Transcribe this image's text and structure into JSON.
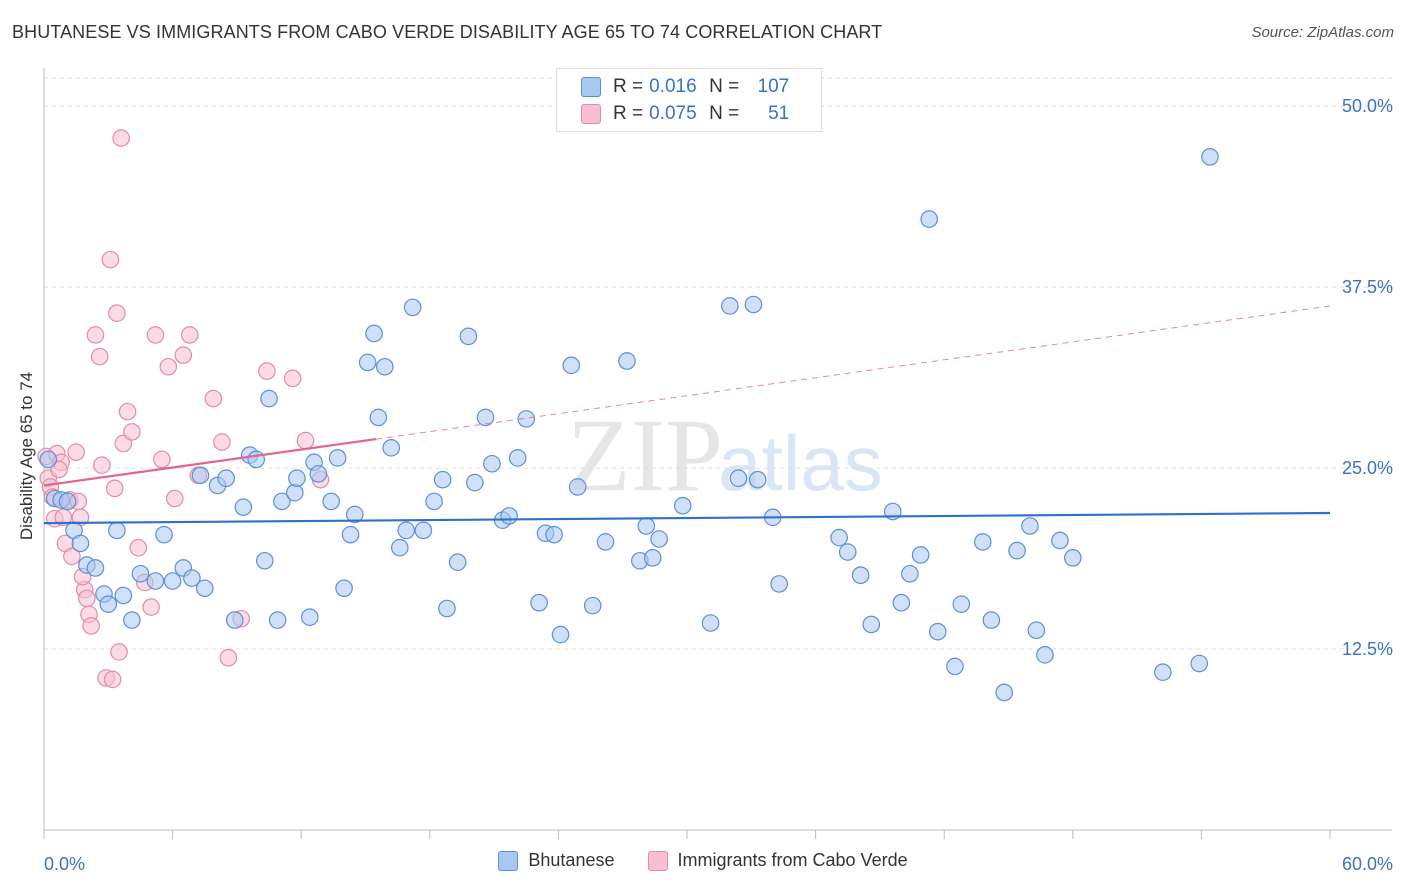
{
  "title": "BHUTANESE VS IMMIGRANTS FROM CABO VERDE DISABILITY AGE 65 TO 74 CORRELATION CHART",
  "source": "Source: ZipAtlas.com",
  "watermark": {
    "zip": "ZIP",
    "atlas": "atlas"
  },
  "stats": {
    "r_label": "R =",
    "n_label": "N =",
    "rows": [
      {
        "r": "0.016",
        "n": "107"
      },
      {
        "r": "0.075",
        "n": "51"
      }
    ]
  },
  "colors": {
    "blue_fill": "#a9c8f0",
    "blue_stroke": "#5b8fd8",
    "blue_line": "#2f6fce",
    "pink_fill": "#f7bfd0",
    "pink_stroke": "#e58aa8",
    "pink_line": "#e0668e",
    "axis_text": "#3a72c4"
  },
  "chart_data": {
    "type": "scatter",
    "title": "BHUTANESE VS IMMIGRANTS FROM CABO VERDE DISABILITY AGE 65 TO 74 CORRELATION CHART",
    "xlabel": "",
    "ylabel": "Disability Age 65 to 74",
    "xlim": [
      0,
      60
    ],
    "ylim": [
      0,
      52.5
    ],
    "x_tick_labels": [
      {
        "v": 0,
        "label": "0.0%"
      },
      {
        "v": 60,
        "label": "60.0%"
      }
    ],
    "y_ticks": [
      {
        "v": 12.5,
        "label": "12.5%"
      },
      {
        "v": 25.0,
        "label": "25.0%"
      },
      {
        "v": 37.5,
        "label": "37.5%"
      },
      {
        "v": 50.0,
        "label": "50.0%"
      }
    ],
    "x_minor_ticks": [
      0,
      6,
      12,
      18,
      24,
      30,
      36,
      42,
      48,
      54,
      60
    ],
    "grid": true,
    "legend": [
      "Bhutanese",
      "Immigrants from Cabo Verde"
    ],
    "series": [
      {
        "name": "Bhutanese",
        "color": "blue",
        "trend": {
          "x0": 0,
          "y0": 21.2,
          "x1": 60,
          "y1": 21.9,
          "dashed_from": null
        },
        "points": [
          [
            0.2,
            25.6
          ],
          [
            0.5,
            22.9
          ],
          [
            0.8,
            22.8
          ],
          [
            1.1,
            22.7
          ],
          [
            1.4,
            20.7
          ],
          [
            1.7,
            19.8
          ],
          [
            2.0,
            18.3
          ],
          [
            2.4,
            18.1
          ],
          [
            2.8,
            16.3
          ],
          [
            3.0,
            15.6
          ],
          [
            3.4,
            20.7
          ],
          [
            3.7,
            16.2
          ],
          [
            4.1,
            14.5
          ],
          [
            4.5,
            17.7
          ],
          [
            5.2,
            17.2
          ],
          [
            6.0,
            17.2
          ],
          [
            5.6,
            20.4
          ],
          [
            6.5,
            18.1
          ],
          [
            6.9,
            17.4
          ],
          [
            7.5,
            16.7
          ],
          [
            7.3,
            24.5
          ],
          [
            8.1,
            23.8
          ],
          [
            8.5,
            24.3
          ],
          [
            8.9,
            14.5
          ],
          [
            9.3,
            22.3
          ],
          [
            9.6,
            25.9
          ],
          [
            9.9,
            25.6
          ],
          [
            10.3,
            18.6
          ],
          [
            10.5,
            29.8
          ],
          [
            10.9,
            14.5
          ],
          [
            11.1,
            22.7
          ],
          [
            11.7,
            23.3
          ],
          [
            11.8,
            24.3
          ],
          [
            12.4,
            14.7
          ],
          [
            12.6,
            25.4
          ],
          [
            12.8,
            24.6
          ],
          [
            13.4,
            22.7
          ],
          [
            13.7,
            25.7
          ],
          [
            14.0,
            16.7
          ],
          [
            14.3,
            20.4
          ],
          [
            14.5,
            21.8
          ],
          [
            15.1,
            32.3
          ],
          [
            15.4,
            34.3
          ],
          [
            15.6,
            28.5
          ],
          [
            15.9,
            32.0
          ],
          [
            16.2,
            26.4
          ],
          [
            16.6,
            19.5
          ],
          [
            16.9,
            20.7
          ],
          [
            17.2,
            36.1
          ],
          [
            17.7,
            20.7
          ],
          [
            18.2,
            22.7
          ],
          [
            18.6,
            24.2
          ],
          [
            18.8,
            15.3
          ],
          [
            19.3,
            18.5
          ],
          [
            19.8,
            34.1
          ],
          [
            20.1,
            24.0
          ],
          [
            20.6,
            28.5
          ],
          [
            20.9,
            25.3
          ],
          [
            21.4,
            21.4
          ],
          [
            21.7,
            21.7
          ],
          [
            22.1,
            25.7
          ],
          [
            22.5,
            28.4
          ],
          [
            23.1,
            15.7
          ],
          [
            23.4,
            20.5
          ],
          [
            23.8,
            20.4
          ],
          [
            24.1,
            13.5
          ],
          [
            24.6,
            32.1
          ],
          [
            24.9,
            23.7
          ],
          [
            25.6,
            15.5
          ],
          [
            26.2,
            19.9
          ],
          [
            27.2,
            32.4
          ],
          [
            27.8,
            18.6
          ],
          [
            28.1,
            21.0
          ],
          [
            28.4,
            18.8
          ],
          [
            28.7,
            20.1
          ],
          [
            29.8,
            22.4
          ],
          [
            31.1,
            14.3
          ],
          [
            32.0,
            36.2
          ],
          [
            32.4,
            24.3
          ],
          [
            33.1,
            36.3
          ],
          [
            33.3,
            24.2
          ],
          [
            34.0,
            21.6
          ],
          [
            34.3,
            17.0
          ],
          [
            37.1,
            20.2
          ],
          [
            37.5,
            19.2
          ],
          [
            38.1,
            17.6
          ],
          [
            38.6,
            14.2
          ],
          [
            39.6,
            22.0
          ],
          [
            40.0,
            15.7
          ],
          [
            40.4,
            17.7
          ],
          [
            40.9,
            19.0
          ],
          [
            41.3,
            42.2
          ],
          [
            41.7,
            13.7
          ],
          [
            42.5,
            11.3
          ],
          [
            42.8,
            15.6
          ],
          [
            43.8,
            19.9
          ],
          [
            44.2,
            14.5
          ],
          [
            44.8,
            9.5
          ],
          [
            45.4,
            19.3
          ],
          [
            46.0,
            21.0
          ],
          [
            46.3,
            13.8
          ],
          [
            46.7,
            12.1
          ],
          [
            47.4,
            20.0
          ],
          [
            48.0,
            18.8
          ],
          [
            52.2,
            10.9
          ],
          [
            53.9,
            11.5
          ],
          [
            54.4,
            46.5
          ]
        ]
      },
      {
        "name": "Immigrants from Cabo Verde",
        "color": "pink",
        "trend": {
          "x0": 0,
          "y0": 23.8,
          "x1": 60,
          "y1": 36.2,
          "dashed_from": 15.5
        },
        "points": [
          [
            0.1,
            25.8
          ],
          [
            0.2,
            24.3
          ],
          [
            0.3,
            23.7
          ],
          [
            0.4,
            23.0
          ],
          [
            0.5,
            21.5
          ],
          [
            0.6,
            26.0
          ],
          [
            0.8,
            25.4
          ],
          [
            1.0,
            19.8
          ],
          [
            1.3,
            18.9
          ],
          [
            1.5,
            26.1
          ],
          [
            1.2,
            22.8
          ],
          [
            1.7,
            21.6
          ],
          [
            1.9,
            16.6
          ],
          [
            2.1,
            14.9
          ],
          [
            2.2,
            14.1
          ],
          [
            2.4,
            34.2
          ],
          [
            2.6,
            32.7
          ],
          [
            2.9,
            10.5
          ],
          [
            3.1,
            39.4
          ],
          [
            3.2,
            10.4
          ],
          [
            3.4,
            35.7
          ],
          [
            3.5,
            12.3
          ],
          [
            3.6,
            47.8
          ],
          [
            3.7,
            26.7
          ],
          [
            3.9,
            28.9
          ],
          [
            4.1,
            27.5
          ],
          [
            4.4,
            19.5
          ],
          [
            4.7,
            17.1
          ],
          [
            5.0,
            15.4
          ],
          [
            5.2,
            34.2
          ],
          [
            5.5,
            25.6
          ],
          [
            5.8,
            32.0
          ],
          [
            6.1,
            22.9
          ],
          [
            6.5,
            32.8
          ],
          [
            6.8,
            34.2
          ],
          [
            7.2,
            24.5
          ],
          [
            7.9,
            29.8
          ],
          [
            8.3,
            26.8
          ],
          [
            8.6,
            11.9
          ],
          [
            9.2,
            14.6
          ],
          [
            10.4,
            31.7
          ],
          [
            11.6,
            31.2
          ],
          [
            12.2,
            26.9
          ],
          [
            12.9,
            24.2
          ],
          [
            0.7,
            24.9
          ],
          [
            1.6,
            22.7
          ],
          [
            2.0,
            16.0
          ],
          [
            2.7,
            25.2
          ],
          [
            3.3,
            23.6
          ],
          [
            0.9,
            21.6
          ],
          [
            1.8,
            17.5
          ]
        ]
      }
    ]
  },
  "legend_labels": {
    "blue": "Bhutanese",
    "pink": "Immigrants from Cabo Verde"
  },
  "axes": {
    "x_min_label": "0.0%",
    "x_max_label": "60.0%",
    "y_label": "Disability Age 65 to 74"
  }
}
